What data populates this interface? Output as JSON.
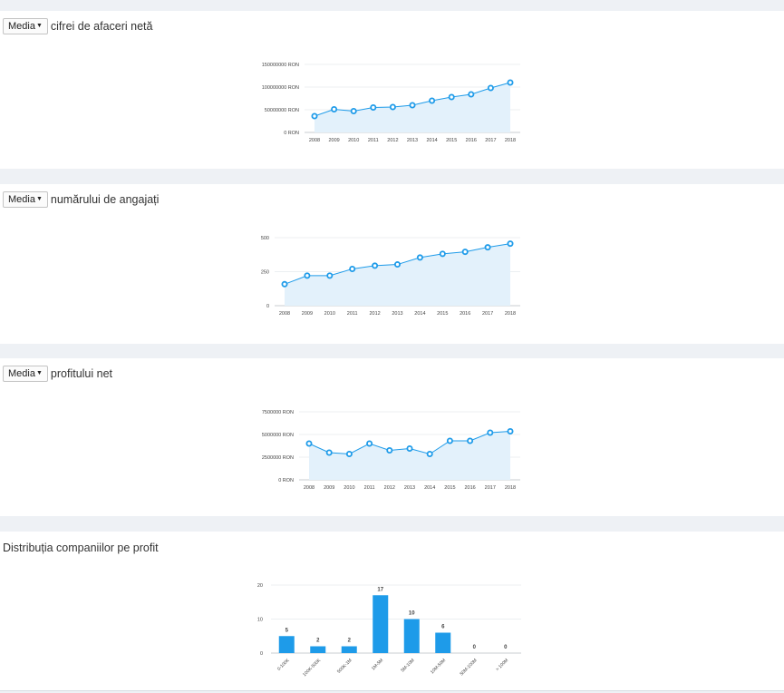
{
  "panels": [
    {
      "button_label": "Media",
      "title": "cifrei de afaceri netă"
    },
    {
      "button_label": "Media",
      "title": "numărului de angajați"
    },
    {
      "button_label": "Media",
      "title": "profitului net"
    },
    {
      "title": "Distribuția companiilor pe profit"
    }
  ],
  "chart_data": [
    {
      "type": "area",
      "x": [
        "2008",
        "2009",
        "2010",
        "2011",
        "2012",
        "2013",
        "2014",
        "2015",
        "2016",
        "2017",
        "2018"
      ],
      "values": [
        36000000,
        51000000,
        47000000,
        55000000,
        56000000,
        60000000,
        70000000,
        78000000,
        84000000,
        98000000,
        110000000
      ],
      "ylim": [
        0,
        150000000
      ],
      "yticks": [
        "0 RON",
        "50000000 RON",
        "100000000 RON",
        "150000000 RON"
      ],
      "ytick_values": [
        0,
        50000000,
        100000000,
        150000000
      ],
      "color": "#1e9be9",
      "fill": "#e3f1fb"
    },
    {
      "type": "area",
      "x": [
        "2008",
        "2009",
        "2010",
        "2011",
        "2012",
        "2013",
        "2014",
        "2015",
        "2016",
        "2017",
        "2018"
      ],
      "values": [
        158,
        221,
        221,
        270,
        294,
        303,
        354,
        381,
        396,
        429,
        456
      ],
      "ylim": [
        0,
        500
      ],
      "yticks": [
        "0",
        "250",
        "500"
      ],
      "ytick_values": [
        0,
        250,
        500
      ],
      "color": "#1e9be9",
      "fill": "#e3f1fb"
    },
    {
      "type": "area",
      "x": [
        "2008",
        "2009",
        "2010",
        "2011",
        "2012",
        "2013",
        "2014",
        "2015",
        "2016",
        "2017",
        "2018"
      ],
      "values": [
        4000000,
        3000000,
        2850000,
        4000000,
        3250000,
        3450000,
        2850000,
        4300000,
        4300000,
        5200000,
        5350000
      ],
      "ylim": [
        0,
        7500000
      ],
      "yticks": [
        "0 RON",
        "2500000 RON",
        "5000000 RON",
        "7500000 RON"
      ],
      "ytick_values": [
        0,
        2500000,
        5000000,
        7500000
      ],
      "color": "#1e9be9",
      "fill": "#e3f1fb"
    },
    {
      "type": "bar",
      "categories": [
        "0-100K",
        "100K-500K",
        "500K-1M",
        "1M-5M",
        "5M-10M",
        "10M-50M",
        "50M-100M",
        "> 100M"
      ],
      "values": [
        5,
        2,
        2,
        17,
        10,
        6,
        0,
        0
      ],
      "ylim": [
        0,
        20
      ],
      "yticks": [
        "0",
        "10",
        "20"
      ],
      "ytick_values": [
        0,
        10,
        20
      ],
      "color": "#1e9be9"
    }
  ]
}
